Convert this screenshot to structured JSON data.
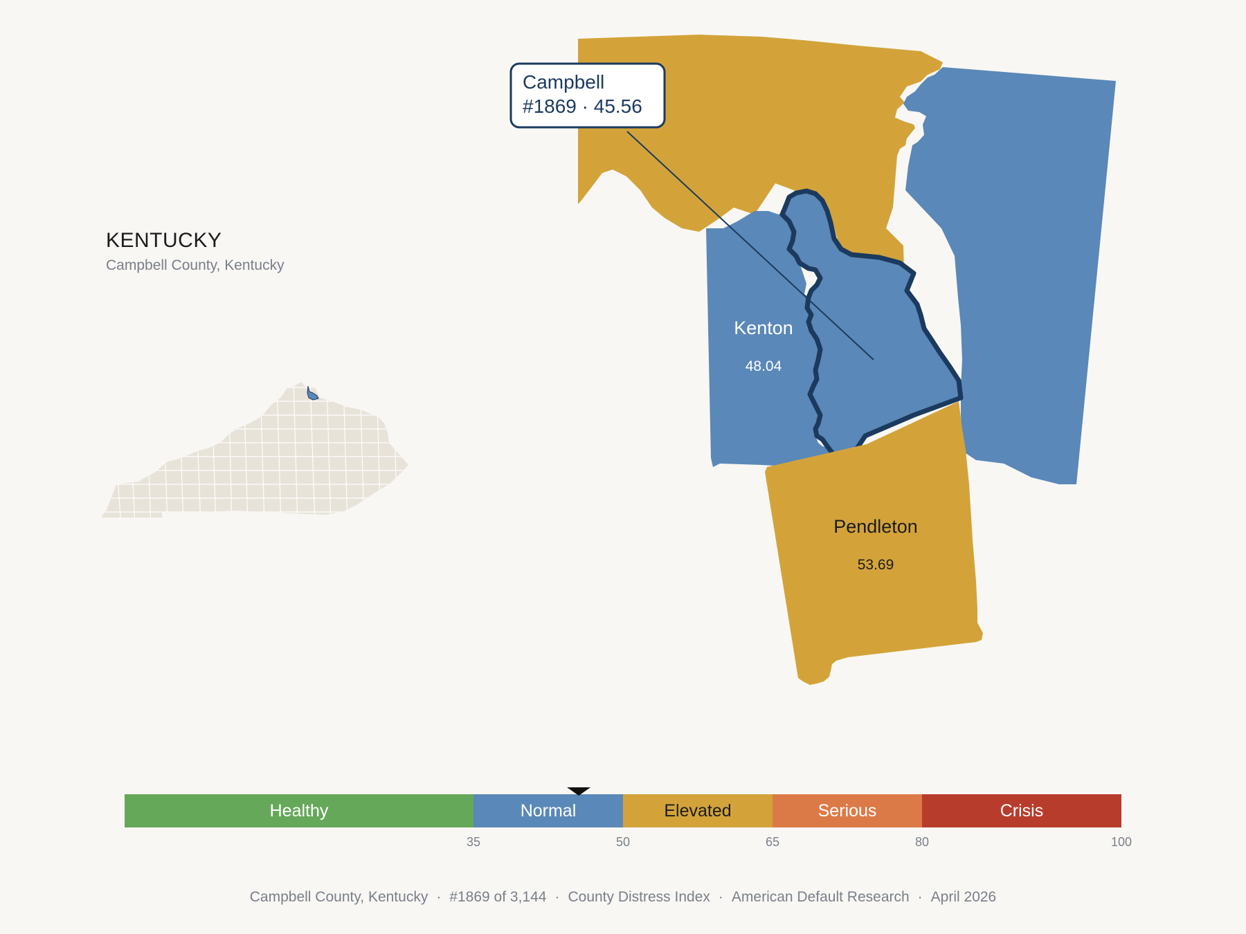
{
  "header": {
    "state_name": "KENTUCKY",
    "subtitle": "Campbell County, Kentucky"
  },
  "callout": {
    "county": "Campbell",
    "rank_value": "#1869 · 45.56"
  },
  "counties": [
    {
      "name": "Campbell",
      "value": "45.56",
      "band": "Normal",
      "color": "#5a88b8",
      "selected": true
    },
    {
      "name": "Kenton",
      "value": "48.04",
      "band": "Normal",
      "color": "#5a88b8"
    },
    {
      "name": "Pendleton",
      "value": "53.69",
      "band": "Elevated",
      "color": "#d3a33a"
    }
  ],
  "scale": {
    "bands": [
      {
        "label": "Healthy",
        "from": 0,
        "to": 35,
        "color": "#66a85a"
      },
      {
        "label": "Normal",
        "from": 35,
        "to": 50,
        "color": "#5a88b8"
      },
      {
        "label": "Elevated",
        "from": 50,
        "to": 65,
        "color": "#d3a33a"
      },
      {
        "label": "Serious",
        "from": 65,
        "to": 80,
        "color": "#dc7a47"
      },
      {
        "label": "Crisis",
        "from": 80,
        "to": 100,
        "color": "#b83c2c"
      }
    ],
    "ticks": [
      "35",
      "50",
      "65",
      "80",
      "100"
    ],
    "marker_value": 45.56
  },
  "footer": {
    "county": "Campbell County, Kentucky",
    "rank": "#1869 of 3,144",
    "index": "County Distress Index",
    "source": "American Default Research",
    "date": "April 2026",
    "separator": "·"
  },
  "colors": {
    "background": "#f8f7f4",
    "normal": "#5a88b8",
    "elevated": "#d3a33a",
    "outline": "#1b3a5e",
    "state_fill": "#e8e3d9"
  }
}
